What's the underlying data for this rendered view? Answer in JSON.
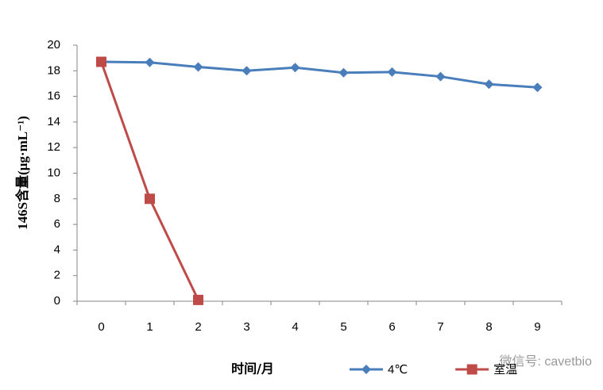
{
  "chart_data": {
    "type": "line",
    "y_label": "146S含量(μg·mL⁻¹)",
    "x_label": "时间/月",
    "watermark": "微信号: cavetbio",
    "categories": [
      "0",
      "1",
      "2",
      "3",
      "4",
      "5",
      "6",
      "7",
      "8",
      "9"
    ],
    "series": [
      {
        "name": "4℃",
        "color": "#4a7ebb",
        "marker": "diamond",
        "values": [
          18.7,
          18.65,
          18.3,
          18.0,
          18.25,
          17.85,
          17.9,
          17.55,
          16.95,
          16.7
        ]
      },
      {
        "name": "室温",
        "color": "#be4b48",
        "marker": "square",
        "values": [
          18.7,
          8.0,
          0.1,
          null,
          null,
          null,
          null,
          null,
          null,
          null
        ]
      }
    ],
    "ylim": [
      0,
      20
    ],
    "yticks": [
      0,
      2,
      4,
      6,
      8,
      10,
      12,
      14,
      16,
      18,
      20
    ],
    "grid": false,
    "legend": "bottom"
  }
}
